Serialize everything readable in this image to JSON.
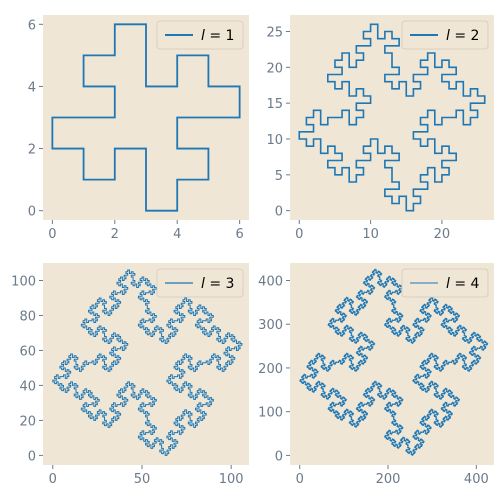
{
  "chart_data": [
    {
      "type": "line",
      "panel": "top-left",
      "legend": {
        "italic": "l",
        "rest": " = 1",
        "placement": "top-right"
      },
      "xlim": [
        -0.3,
        6.3
      ],
      "ylim": [
        -0.3,
        6.3
      ],
      "xticks": [
        0,
        2,
        4,
        6
      ],
      "yticks": [
        0,
        2,
        4,
        6
      ],
      "level": 1,
      "origin": [
        3,
        0
      ],
      "first_direction": "E",
      "series": [
        {
          "color": "#1f77b4",
          "points_note": "closed quadratic-Koch-like square curve"
        }
      ]
    },
    {
      "type": "line",
      "panel": "top-right",
      "legend": {
        "italic": "l",
        "rest": " = 2",
        "placement": "top-right"
      },
      "xlim": [
        -1.3,
        27.3
      ],
      "ylim": [
        -1.3,
        27.3
      ],
      "xticks": [
        0,
        10,
        20
      ],
      "yticks": [
        0,
        5,
        10,
        15,
        20,
        25
      ],
      "level": 2,
      "origin": [
        14.5,
        0
      ],
      "first_direction": "E",
      "series": [
        {
          "color": "#1f77b4"
        }
      ]
    },
    {
      "type": "line",
      "panel": "bottom-left",
      "legend": {
        "italic": "l",
        "rest": " = 3",
        "placement": "top-right"
      },
      "xlim": [
        -5.5,
        110
      ],
      "ylim": [
        -5.5,
        110
      ],
      "xticks": [
        0,
        50,
        100
      ],
      "yticks": [
        0,
        20,
        40,
        60,
        80,
        100
      ],
      "level": 3,
      "origin": [
        59.5,
        0
      ],
      "first_direction": "E",
      "series": [
        {
          "color": "#1f77b4"
        }
      ]
    },
    {
      "type": "line",
      "panel": "bottom-right",
      "legend": {
        "italic": "l",
        "rest": " = 4",
        "placement": "top-right"
      },
      "xlim": [
        -22,
        440
      ],
      "ylim": [
        -22,
        440
      ],
      "xticks": [
        0,
        200,
        400
      ],
      "yticks": [
        0,
        100,
        200,
        300,
        400
      ],
      "level": 4,
      "origin": [
        239.5,
        0
      ],
      "first_direction": "E",
      "series": [
        {
          "color": "#1f77b4"
        }
      ]
    }
  ],
  "style": {
    "facecolor": "#efe6d5",
    "line_color": "#1f77b4",
    "tick_color": "#6b7a8a"
  }
}
